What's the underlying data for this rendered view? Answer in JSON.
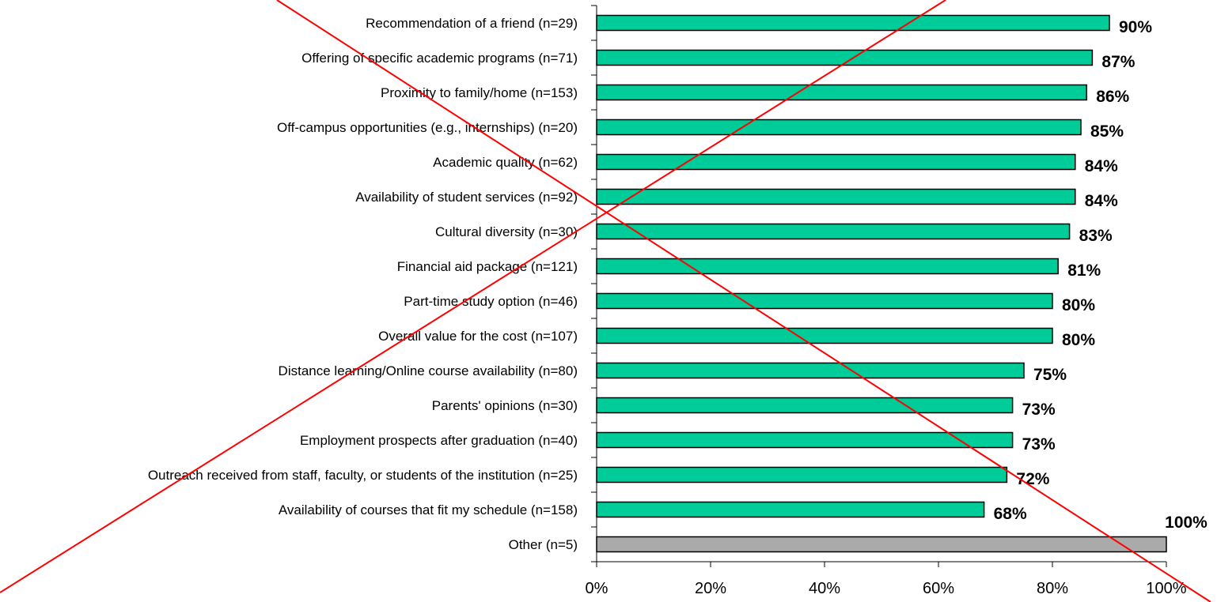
{
  "chart_data": {
    "type": "bar",
    "orientation": "horizontal",
    "categories": [
      "Recommendation of a friend (n=29)",
      "Offering of specific academic programs (n=71)",
      "Proximity to family/home (n=153)",
      "Off-campus opportunities (e.g., internships) (n=20)",
      "Academic quality (n=62)",
      "Availability of student services (n=92)",
      "Cultural diversity (n=30)",
      "Financial aid package (n=121)",
      "Part-time study option (n=46)",
      "Overall value for the cost (n=107)",
      "Distance learning/Online course availability (n=80)",
      "Parents' opinions (n=30)",
      "Employment prospects after graduation (n=40)",
      "Outreach received from staff, faculty, or students of the institution (n=25)",
      "Availability of courses that fit my schedule (n=158)",
      "Other (n=5)"
    ],
    "values": [
      90,
      87,
      86,
      85,
      84,
      84,
      83,
      81,
      80,
      80,
      75,
      73,
      73,
      72,
      68,
      100
    ],
    "value_labels": [
      "90%",
      "87%",
      "86%",
      "85%",
      "84%",
      "84%",
      "83%",
      "81%",
      "80%",
      "80%",
      "75%",
      "73%",
      "73%",
      "72%",
      "68%",
      "100%"
    ],
    "bar_colors": [
      "#00cc99",
      "#00cc99",
      "#00cc99",
      "#00cc99",
      "#00cc99",
      "#00cc99",
      "#00cc99",
      "#00cc99",
      "#00cc99",
      "#00cc99",
      "#00cc99",
      "#00cc99",
      "#00cc99",
      "#00cc99",
      "#00cc99",
      "#aaaaaa"
    ],
    "xlim": [
      0,
      100
    ],
    "x_ticks": [
      0,
      20,
      40,
      60,
      80,
      100
    ],
    "x_tick_labels": [
      "0%",
      "20%",
      "40%",
      "60%",
      "80%",
      "100%"
    ],
    "title": "",
    "xlabel": "",
    "ylabel": "",
    "grid": false,
    "annotation": "red diagonal cross drawn over the whole chart",
    "cross_color": "#ff0000"
  }
}
